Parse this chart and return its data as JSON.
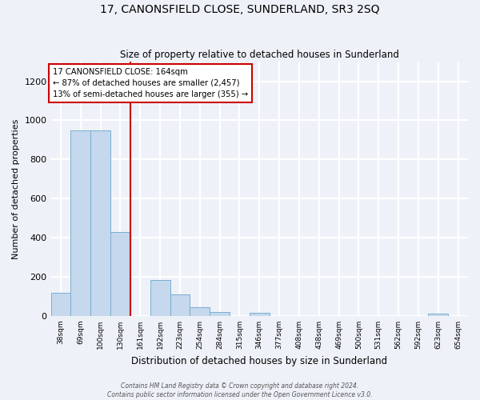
{
  "title": "17, CANONSFIELD CLOSE, SUNDERLAND, SR3 2SQ",
  "subtitle": "Size of property relative to detached houses in Sunderland",
  "xlabel": "Distribution of detached houses by size in Sunderland",
  "ylabel": "Number of detached properties",
  "bar_labels": [
    "38sqm",
    "69sqm",
    "100sqm",
    "130sqm",
    "161sqm",
    "192sqm",
    "223sqm",
    "254sqm",
    "284sqm",
    "315sqm",
    "346sqm",
    "377sqm",
    "408sqm",
    "438sqm",
    "469sqm",
    "500sqm",
    "531sqm",
    "562sqm",
    "592sqm",
    "623sqm",
    "654sqm"
  ],
  "bar_values": [
    120,
    950,
    950,
    430,
    0,
    185,
    110,
    45,
    20,
    0,
    15,
    0,
    0,
    0,
    0,
    0,
    0,
    0,
    0,
    10,
    0
  ],
  "bar_color": "#c5d8ed",
  "bar_edge_color": "#7aaed0",
  "vline_color": "#cc0000",
  "vline_index": 3.5,
  "annotation_line1": "17 CANONSFIELD CLOSE: 164sqm",
  "annotation_line2": "← 87% of detached houses are smaller (2,457)",
  "annotation_line3": "13% of semi-detached houses are larger (355) →",
  "ylim": [
    0,
    1300
  ],
  "yticks": [
    0,
    200,
    400,
    600,
    800,
    1000,
    1200
  ],
  "background_color": "#eef2f8",
  "grid_color": "#ffffff",
  "footer_line1": "Contains HM Land Registry data © Crown copyright and database right 2024.",
  "footer_line2": "Contains public sector information licensed under the Open Government Licence v3.0."
}
